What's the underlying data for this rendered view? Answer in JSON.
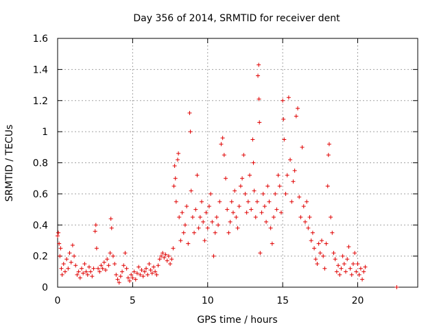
{
  "chart_data": {
    "type": "scatter",
    "title": "Day 356 of 2014, SRMTID for receiver dent",
    "xlabel": "GPS time / hours",
    "ylabel": "SRMTID / TECUs",
    "xlim": [
      0,
      24
    ],
    "ylim": [
      0,
      1.6
    ],
    "x_ticks": [
      0,
      5,
      10,
      15,
      20
    ],
    "y_ticks": [
      0,
      0.2,
      0.4,
      0.6,
      0.8,
      1,
      1.2,
      1.4,
      1.6
    ],
    "x_tick_labels": [
      "0",
      "5",
      "10",
      "15",
      "20"
    ],
    "y_tick_labels": [
      "0",
      "0.2",
      "0.4",
      "0.6",
      "0.8",
      "1",
      "1.2",
      "1.4",
      "1.6"
    ],
    "grid": true,
    "marker": "+",
    "series": [
      {
        "name": "SRMTID",
        "color": "#e00000",
        "points": [
          [
            0.0,
            0.33
          ],
          [
            0.05,
            0.35
          ],
          [
            0.1,
            0.28
          ],
          [
            0.15,
            0.2
          ],
          [
            0.2,
            0.25
          ],
          [
            0.25,
            0.12
          ],
          [
            0.3,
            0.08
          ],
          [
            0.4,
            0.15
          ],
          [
            0.5,
            0.1
          ],
          [
            0.6,
            0.18
          ],
          [
            0.7,
            0.12
          ],
          [
            0.8,
            0.22
          ],
          [
            0.9,
            0.16
          ],
          [
            1.0,
            0.27
          ],
          [
            1.1,
            0.2
          ],
          [
            1.2,
            0.14
          ],
          [
            1.3,
            0.08
          ],
          [
            1.4,
            0.1
          ],
          [
            1.5,
            0.06
          ],
          [
            1.6,
            0.12
          ],
          [
            1.7,
            0.09
          ],
          [
            1.8,
            0.15
          ],
          [
            1.9,
            0.1
          ],
          [
            2.0,
            0.08
          ],
          [
            2.1,
            0.13
          ],
          [
            2.2,
            0.1
          ],
          [
            2.3,
            0.07
          ],
          [
            2.4,
            0.12
          ],
          [
            2.5,
            0.36
          ],
          [
            2.55,
            0.4
          ],
          [
            2.6,
            0.25
          ],
          [
            2.7,
            0.12
          ],
          [
            2.8,
            0.1
          ],
          [
            2.9,
            0.14
          ],
          [
            3.0,
            0.12
          ],
          [
            3.1,
            0.16
          ],
          [
            3.2,
            0.11
          ],
          [
            3.3,
            0.18
          ],
          [
            3.4,
            0.14
          ],
          [
            3.5,
            0.22
          ],
          [
            3.55,
            0.44
          ],
          [
            3.6,
            0.38
          ],
          [
            3.7,
            0.2
          ],
          [
            3.8,
            0.15
          ],
          [
            3.9,
            0.08
          ],
          [
            4.0,
            0.05
          ],
          [
            4.1,
            0.03
          ],
          [
            4.2,
            0.07
          ],
          [
            4.3,
            0.1
          ],
          [
            4.4,
            0.14
          ],
          [
            4.5,
            0.22
          ],
          [
            4.6,
            0.12
          ],
          [
            4.7,
            0.06
          ],
          [
            4.8,
            0.04
          ],
          [
            4.9,
            0.08
          ],
          [
            5.0,
            0.06
          ],
          [
            5.1,
            0.1
          ],
          [
            5.2,
            0.05
          ],
          [
            5.3,
            0.09
          ],
          [
            5.4,
            0.13
          ],
          [
            5.5,
            0.08
          ],
          [
            5.6,
            0.11
          ],
          [
            5.7,
            0.07
          ],
          [
            5.8,
            0.1
          ],
          [
            5.9,
            0.12
          ],
          [
            6.0,
            0.08
          ],
          [
            6.1,
            0.15
          ],
          [
            6.2,
            0.11
          ],
          [
            6.3,
            0.09
          ],
          [
            6.4,
            0.13
          ],
          [
            6.5,
            0.1
          ],
          [
            6.6,
            0.08
          ],
          [
            6.7,
            0.14
          ],
          [
            6.8,
            0.18
          ],
          [
            6.9,
            0.2
          ],
          [
            7.0,
            0.22
          ],
          [
            7.1,
            0.19
          ],
          [
            7.2,
            0.21
          ],
          [
            7.3,
            0.17
          ],
          [
            7.4,
            0.2
          ],
          [
            7.5,
            0.15
          ],
          [
            7.6,
            0.18
          ],
          [
            7.7,
            0.25
          ],
          [
            7.75,
            0.65
          ],
          [
            7.8,
            0.78
          ],
          [
            7.85,
            0.7
          ],
          [
            7.9,
            0.55
          ],
          [
            8.0,
            0.82
          ],
          [
            8.05,
            0.86
          ],
          [
            8.1,
            0.45
          ],
          [
            8.2,
            0.3
          ],
          [
            8.3,
            0.48
          ],
          [
            8.4,
            0.35
          ],
          [
            8.5,
            0.4
          ],
          [
            8.6,
            0.52
          ],
          [
            8.7,
            0.28
          ],
          [
            8.8,
            1.12
          ],
          [
            8.85,
            1.0
          ],
          [
            8.9,
            0.62
          ],
          [
            9.0,
            0.45
          ],
          [
            9.1,
            0.35
          ],
          [
            9.2,
            0.5
          ],
          [
            9.3,
            0.72
          ],
          [
            9.4,
            0.38
          ],
          [
            9.5,
            0.45
          ],
          [
            9.6,
            0.55
          ],
          [
            9.7,
            0.42
          ],
          [
            9.8,
            0.3
          ],
          [
            9.9,
            0.48
          ],
          [
            10.0,
            0.38
          ],
          [
            10.1,
            0.52
          ],
          [
            10.2,
            0.6
          ],
          [
            10.3,
            0.42
          ],
          [
            10.4,
            0.2
          ],
          [
            10.5,
            0.35
          ],
          [
            10.6,
            0.45
          ],
          [
            10.7,
            0.4
          ],
          [
            10.8,
            0.55
          ],
          [
            10.9,
            0.92
          ],
          [
            11.0,
            0.96
          ],
          [
            11.1,
            0.85
          ],
          [
            11.2,
            0.7
          ],
          [
            11.3,
            0.5
          ],
          [
            11.4,
            0.35
          ],
          [
            11.5,
            0.42
          ],
          [
            11.6,
            0.55
          ],
          [
            11.7,
            0.48
          ],
          [
            11.8,
            0.62
          ],
          [
            11.9,
            0.45
          ],
          [
            12.0,
            0.38
          ],
          [
            12.1,
            0.52
          ],
          [
            12.2,
            0.65
          ],
          [
            12.3,
            0.7
          ],
          [
            12.4,
            0.85
          ],
          [
            12.5,
            0.6
          ],
          [
            12.6,
            0.48
          ],
          [
            12.7,
            0.55
          ],
          [
            12.8,
            0.72
          ],
          [
            12.9,
            0.5
          ],
          [
            13.0,
            0.95
          ],
          [
            13.05,
            0.8
          ],
          [
            13.1,
            0.62
          ],
          [
            13.2,
            0.45
          ],
          [
            13.3,
            0.55
          ],
          [
            13.35,
            1.36
          ],
          [
            13.4,
            1.43
          ],
          [
            13.42,
            1.21
          ],
          [
            13.45,
            1.06
          ],
          [
            13.5,
            0.22
          ],
          [
            13.6,
            0.48
          ],
          [
            13.7,
            0.6
          ],
          [
            13.8,
            0.52
          ],
          [
            13.9,
            0.42
          ],
          [
            14.0,
            0.65
          ],
          [
            14.1,
            0.55
          ],
          [
            14.2,
            0.38
          ],
          [
            14.3,
            0.28
          ],
          [
            14.4,
            0.45
          ],
          [
            14.5,
            0.6
          ],
          [
            14.6,
            0.5
          ],
          [
            14.7,
            0.72
          ],
          [
            14.8,
            0.65
          ],
          [
            14.9,
            0.48
          ],
          [
            15.0,
            1.2
          ],
          [
            15.05,
            1.08
          ],
          [
            15.1,
            0.95
          ],
          [
            15.2,
            0.6
          ],
          [
            15.3,
            0.72
          ],
          [
            15.4,
            1.22
          ],
          [
            15.5,
            0.82
          ],
          [
            15.6,
            0.55
          ],
          [
            15.7,
            0.68
          ],
          [
            15.8,
            0.75
          ],
          [
            15.9,
            1.1
          ],
          [
            16.0,
            1.15
          ],
          [
            16.1,
            0.58
          ],
          [
            16.2,
            0.45
          ],
          [
            16.3,
            0.9
          ],
          [
            16.4,
            0.52
          ],
          [
            16.5,
            0.42
          ],
          [
            16.6,
            0.55
          ],
          [
            16.7,
            0.38
          ],
          [
            16.8,
            0.45
          ],
          [
            16.9,
            0.3
          ],
          [
            17.0,
            0.35
          ],
          [
            17.1,
            0.25
          ],
          [
            17.2,
            0.18
          ],
          [
            17.3,
            0.15
          ],
          [
            17.4,
            0.28
          ],
          [
            17.5,
            0.22
          ],
          [
            17.6,
            0.3
          ],
          [
            17.7,
            0.2
          ],
          [
            17.8,
            0.12
          ],
          [
            17.9,
            0.28
          ],
          [
            18.0,
            0.65
          ],
          [
            18.05,
            0.85
          ],
          [
            18.1,
            0.92
          ],
          [
            18.2,
            0.45
          ],
          [
            18.3,
            0.35
          ],
          [
            18.4,
            0.22
          ],
          [
            18.5,
            0.18
          ],
          [
            18.6,
            0.1
          ],
          [
            18.7,
            0.14
          ],
          [
            18.8,
            0.08
          ],
          [
            18.9,
            0.12
          ],
          [
            19.0,
            0.2
          ],
          [
            19.1,
            0.15
          ],
          [
            19.2,
            0.1
          ],
          [
            19.3,
            0.18
          ],
          [
            19.4,
            0.26
          ],
          [
            19.5,
            0.12
          ],
          [
            19.6,
            0.08
          ],
          [
            19.7,
            0.15
          ],
          [
            19.8,
            0.22
          ],
          [
            19.9,
            0.1
          ],
          [
            20.0,
            0.15
          ],
          [
            20.1,
            0.08
          ],
          [
            20.2,
            0.12
          ],
          [
            20.3,
            0.05
          ],
          [
            20.4,
            0.1
          ],
          [
            20.5,
            0.13
          ],
          [
            22.6,
            0.0
          ]
        ]
      }
    ]
  }
}
